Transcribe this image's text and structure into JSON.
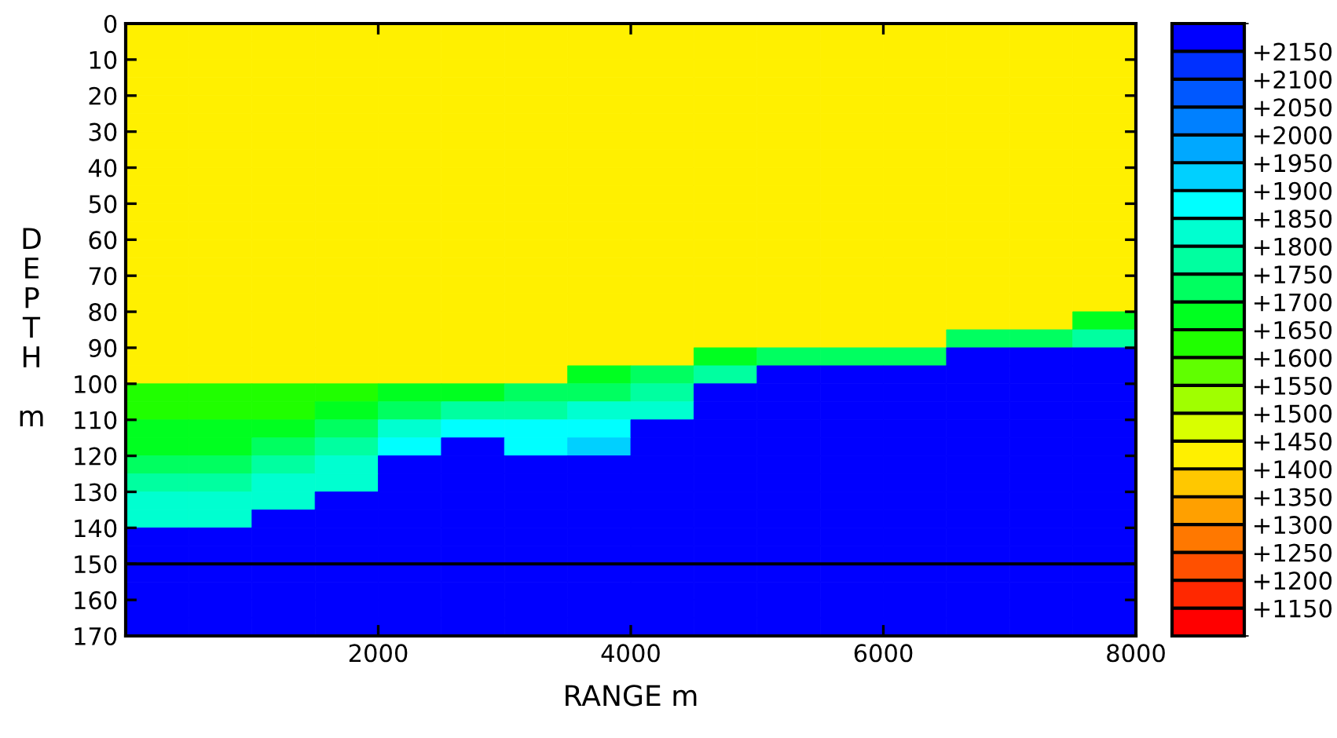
{
  "chart_data": {
    "type": "heatmap",
    "xlabel": "RANGE m",
    "ylabel": "DEPTH m",
    "xlim": [
      0,
      8000
    ],
    "xticks": [
      2000,
      4000,
      6000,
      8000
    ],
    "ylim": [
      170,
      0
    ],
    "yticks": [
      0,
      10,
      20,
      30,
      40,
      50,
      60,
      70,
      80,
      90,
      100,
      110,
      120,
      130,
      140,
      150,
      160,
      170
    ],
    "clim": [
      1100,
      2200
    ],
    "cticks": [
      {
        "value": 1150,
        "label": "+1150"
      },
      {
        "value": 1200,
        "label": "+1200"
      },
      {
        "value": 1250,
        "label": "+1250"
      },
      {
        "value": 1300,
        "label": "+1300"
      },
      {
        "value": 1350,
        "label": "+1350"
      },
      {
        "value": 1400,
        "label": "+1400"
      },
      {
        "value": 1450,
        "label": "+1450"
      },
      {
        "value": 1500,
        "label": "+1500"
      },
      {
        "value": 1550,
        "label": "+1550"
      },
      {
        "value": 1600,
        "label": "+1600"
      },
      {
        "value": 1650,
        "label": "+1650"
      },
      {
        "value": 1700,
        "label": "+1700"
      },
      {
        "value": 1750,
        "label": "+1750"
      },
      {
        "value": 1800,
        "label": "+1800"
      },
      {
        "value": 1850,
        "label": "+1850"
      },
      {
        "value": 1900,
        "label": "+1900"
      },
      {
        "value": 1950,
        "label": "+1950"
      },
      {
        "value": 2000,
        "label": "+2000"
      },
      {
        "value": 2050,
        "label": "+2050"
      },
      {
        "value": 2100,
        "label": "+2100"
      },
      {
        "value": 2150,
        "label": "+2150"
      }
    ],
    "colors": [
      "#ff0000",
      "#ff2800",
      "#ff5000",
      "#ff7800",
      "#ffa000",
      "#ffc800",
      "#fff000",
      "#d8ff00",
      "#a0ff00",
      "#60ff00",
      "#20ff00",
      "#00ff20",
      "#00ff60",
      "#00ffa0",
      "#00ffd0",
      "#00ffff",
      "#00d0ff",
      "#00a8ff",
      "#0080ff",
      "#0058ff",
      "#0030ff",
      "#0000ff"
    ],
    "cells": [
      [
        1425,
        1425,
        1425,
        1425,
        1425,
        1425,
        1425,
        1425,
        1425,
        1425,
        1425,
        1425,
        1425,
        1425,
        1425,
        1425
      ],
      [
        1425,
        1425,
        1425,
        1425,
        1425,
        1425,
        1425,
        1425,
        1425,
        1425,
        1425,
        1425,
        1425,
        1425,
        1425,
        1425
      ],
      [
        1425,
        1425,
        1425,
        1425,
        1425,
        1425,
        1425,
        1425,
        1425,
        1425,
        1425,
        1425,
        1425,
        1425,
        1425,
        1425
      ],
      [
        1425,
        1425,
        1425,
        1425,
        1425,
        1425,
        1425,
        1425,
        1425,
        1425,
        1425,
        1425,
        1425,
        1425,
        1425,
        1425
      ],
      [
        1425,
        1425,
        1425,
        1425,
        1425,
        1425,
        1425,
        1425,
        1425,
        1425,
        1425,
        1425,
        1425,
        1425,
        1425,
        1425
      ],
      [
        1425,
        1425,
        1425,
        1425,
        1425,
        1425,
        1425,
        1425,
        1425,
        1425,
        1425,
        1425,
        1425,
        1425,
        1425,
        1425
      ],
      [
        1425,
        1425,
        1425,
        1425,
        1425,
        1425,
        1425,
        1425,
        1425,
        1425,
        1425,
        1425,
        1425,
        1425,
        1425,
        1425
      ],
      [
        1425,
        1425,
        1425,
        1425,
        1425,
        1425,
        1425,
        1425,
        1425,
        1425,
        1425,
        1425,
        1425,
        1425,
        1425,
        1425
      ],
      [
        1425,
        1425,
        1425,
        1425,
        1425,
        1425,
        1425,
        1425,
        1425,
        1425,
        1425,
        1425,
        1425,
        1425,
        1425,
        1425
      ],
      [
        1425,
        1425,
        1425,
        1425,
        1425,
        1425,
        1425,
        1425,
        1425,
        1425,
        1425,
        1425,
        1425,
        1425,
        1425,
        1425
      ],
      [
        1425,
        1425,
        1425,
        1425,
        1425,
        1425,
        1425,
        1425,
        1425,
        1425,
        1425,
        1425,
        1425,
        1425,
        1425,
        1425
      ],
      [
        1425,
        1425,
        1425,
        1425,
        1425,
        1425,
        1425,
        1425,
        1425,
        1425,
        1425,
        1425,
        1425,
        1425,
        1425,
        1425
      ],
      [
        1425,
        1425,
        1425,
        1425,
        1425,
        1425,
        1425,
        1425,
        1425,
        1425,
        1425,
        1425,
        1425,
        1425,
        1425,
        1425
      ],
      [
        1425,
        1425,
        1425,
        1425,
        1425,
        1425,
        1425,
        1425,
        1425,
        1425,
        1425,
        1425,
        1425,
        1425,
        1425,
        1425
      ],
      [
        1425,
        1425,
        1425,
        1425,
        1425,
        1425,
        1425,
        1425,
        1425,
        1425,
        1425,
        1425,
        1425,
        1425,
        1425,
        1425
      ],
      [
        1425,
        1425,
        1425,
        1425,
        1425,
        1425,
        1425,
        1425,
        1425,
        1425,
        1425,
        1425,
        1425,
        1425,
        1425,
        1425
      ],
      [
        1425,
        1425,
        1425,
        1425,
        1425,
        1425,
        1425,
        1425,
        1425,
        1425,
        1425,
        1425,
        1425,
        1425,
        1425,
        1675
      ],
      [
        1425,
        1425,
        1425,
        1425,
        1425,
        1425,
        1425,
        1425,
        1425,
        1425,
        1425,
        1425,
        1425,
        1725,
        1725,
        1775
      ],
      [
        1425,
        1425,
        1425,
        1425,
        1425,
        1425,
        1425,
        1425,
        1425,
        1675,
        1725,
        1725,
        1725,
        2175,
        2175,
        2175
      ],
      [
        1425,
        1425,
        1425,
        1425,
        1425,
        1425,
        1425,
        1675,
        1725,
        1775,
        2175,
        2175,
        2175,
        2175,
        2175,
        2175
      ],
      [
        1625,
        1625,
        1625,
        1625,
        1675,
        1675,
        1725,
        1725,
        1775,
        2175,
        2175,
        2175,
        2175,
        2175,
        2175,
        2175
      ],
      [
        1625,
        1625,
        1625,
        1675,
        1725,
        1775,
        1775,
        1825,
        1825,
        2175,
        2175,
        2175,
        2175,
        2175,
        2175,
        2175
      ],
      [
        1675,
        1675,
        1675,
        1725,
        1825,
        1875,
        1875,
        1875,
        2175,
        2175,
        2175,
        2175,
        2175,
        2175,
        2175,
        2175
      ],
      [
        1675,
        1675,
        1725,
        1775,
        1875,
        2175,
        1875,
        1925,
        2175,
        2175,
        2175,
        2175,
        2175,
        2175,
        2175,
        2175
      ],
      [
        1725,
        1725,
        1775,
        1825,
        2175,
        2175,
        2175,
        2175,
        2175,
        2175,
        2175,
        2175,
        2175,
        2175,
        2175,
        2175
      ],
      [
        1775,
        1775,
        1825,
        1825,
        2175,
        2175,
        2175,
        2175,
        2175,
        2175,
        2175,
        2175,
        2175,
        2175,
        2175,
        2175
      ],
      [
        1825,
        1825,
        1825,
        2175,
        2175,
        2175,
        2175,
        2175,
        2175,
        2175,
        2175,
        2175,
        2175,
        2175,
        2175,
        2175
      ],
      [
        1825,
        1825,
        2175,
        2175,
        2175,
        2175,
        2175,
        2175,
        2175,
        2175,
        2175,
        2175,
        2175,
        2175,
        2175,
        2175
      ],
      [
        2175,
        2175,
        2175,
        2175,
        2175,
        2175,
        2175,
        2175,
        2175,
        2175,
        2175,
        2175,
        2175,
        2175,
        2175,
        2175
      ],
      [
        2175,
        2175,
        2175,
        2175,
        2175,
        2175,
        2175,
        2175,
        2175,
        2175,
        2175,
        2175,
        2175,
        2175,
        2175,
        2175
      ],
      [
        2175,
        2175,
        2175,
        2175,
        2175,
        2175,
        2175,
        2175,
        2175,
        2175,
        2175,
        2175,
        2175,
        2175,
        2175,
        2175
      ],
      [
        2175,
        2175,
        2175,
        2175,
        2175,
        2175,
        2175,
        2175,
        2175,
        2175,
        2175,
        2175,
        2175,
        2175,
        2175,
        2175
      ],
      [
        2175,
        2175,
        2175,
        2175,
        2175,
        2175,
        2175,
        2175,
        2175,
        2175,
        2175,
        2175,
        2175,
        2175,
        2175,
        2175
      ],
      [
        2175,
        2175,
        2175,
        2175,
        2175,
        2175,
        2175,
        2175,
        2175,
        2175,
        2175,
        2175,
        2175,
        2175,
        2175,
        2175
      ]
    ],
    "ref_lines": [
      {
        "axis": "y",
        "value": 150,
        "color": "#000000"
      }
    ]
  }
}
